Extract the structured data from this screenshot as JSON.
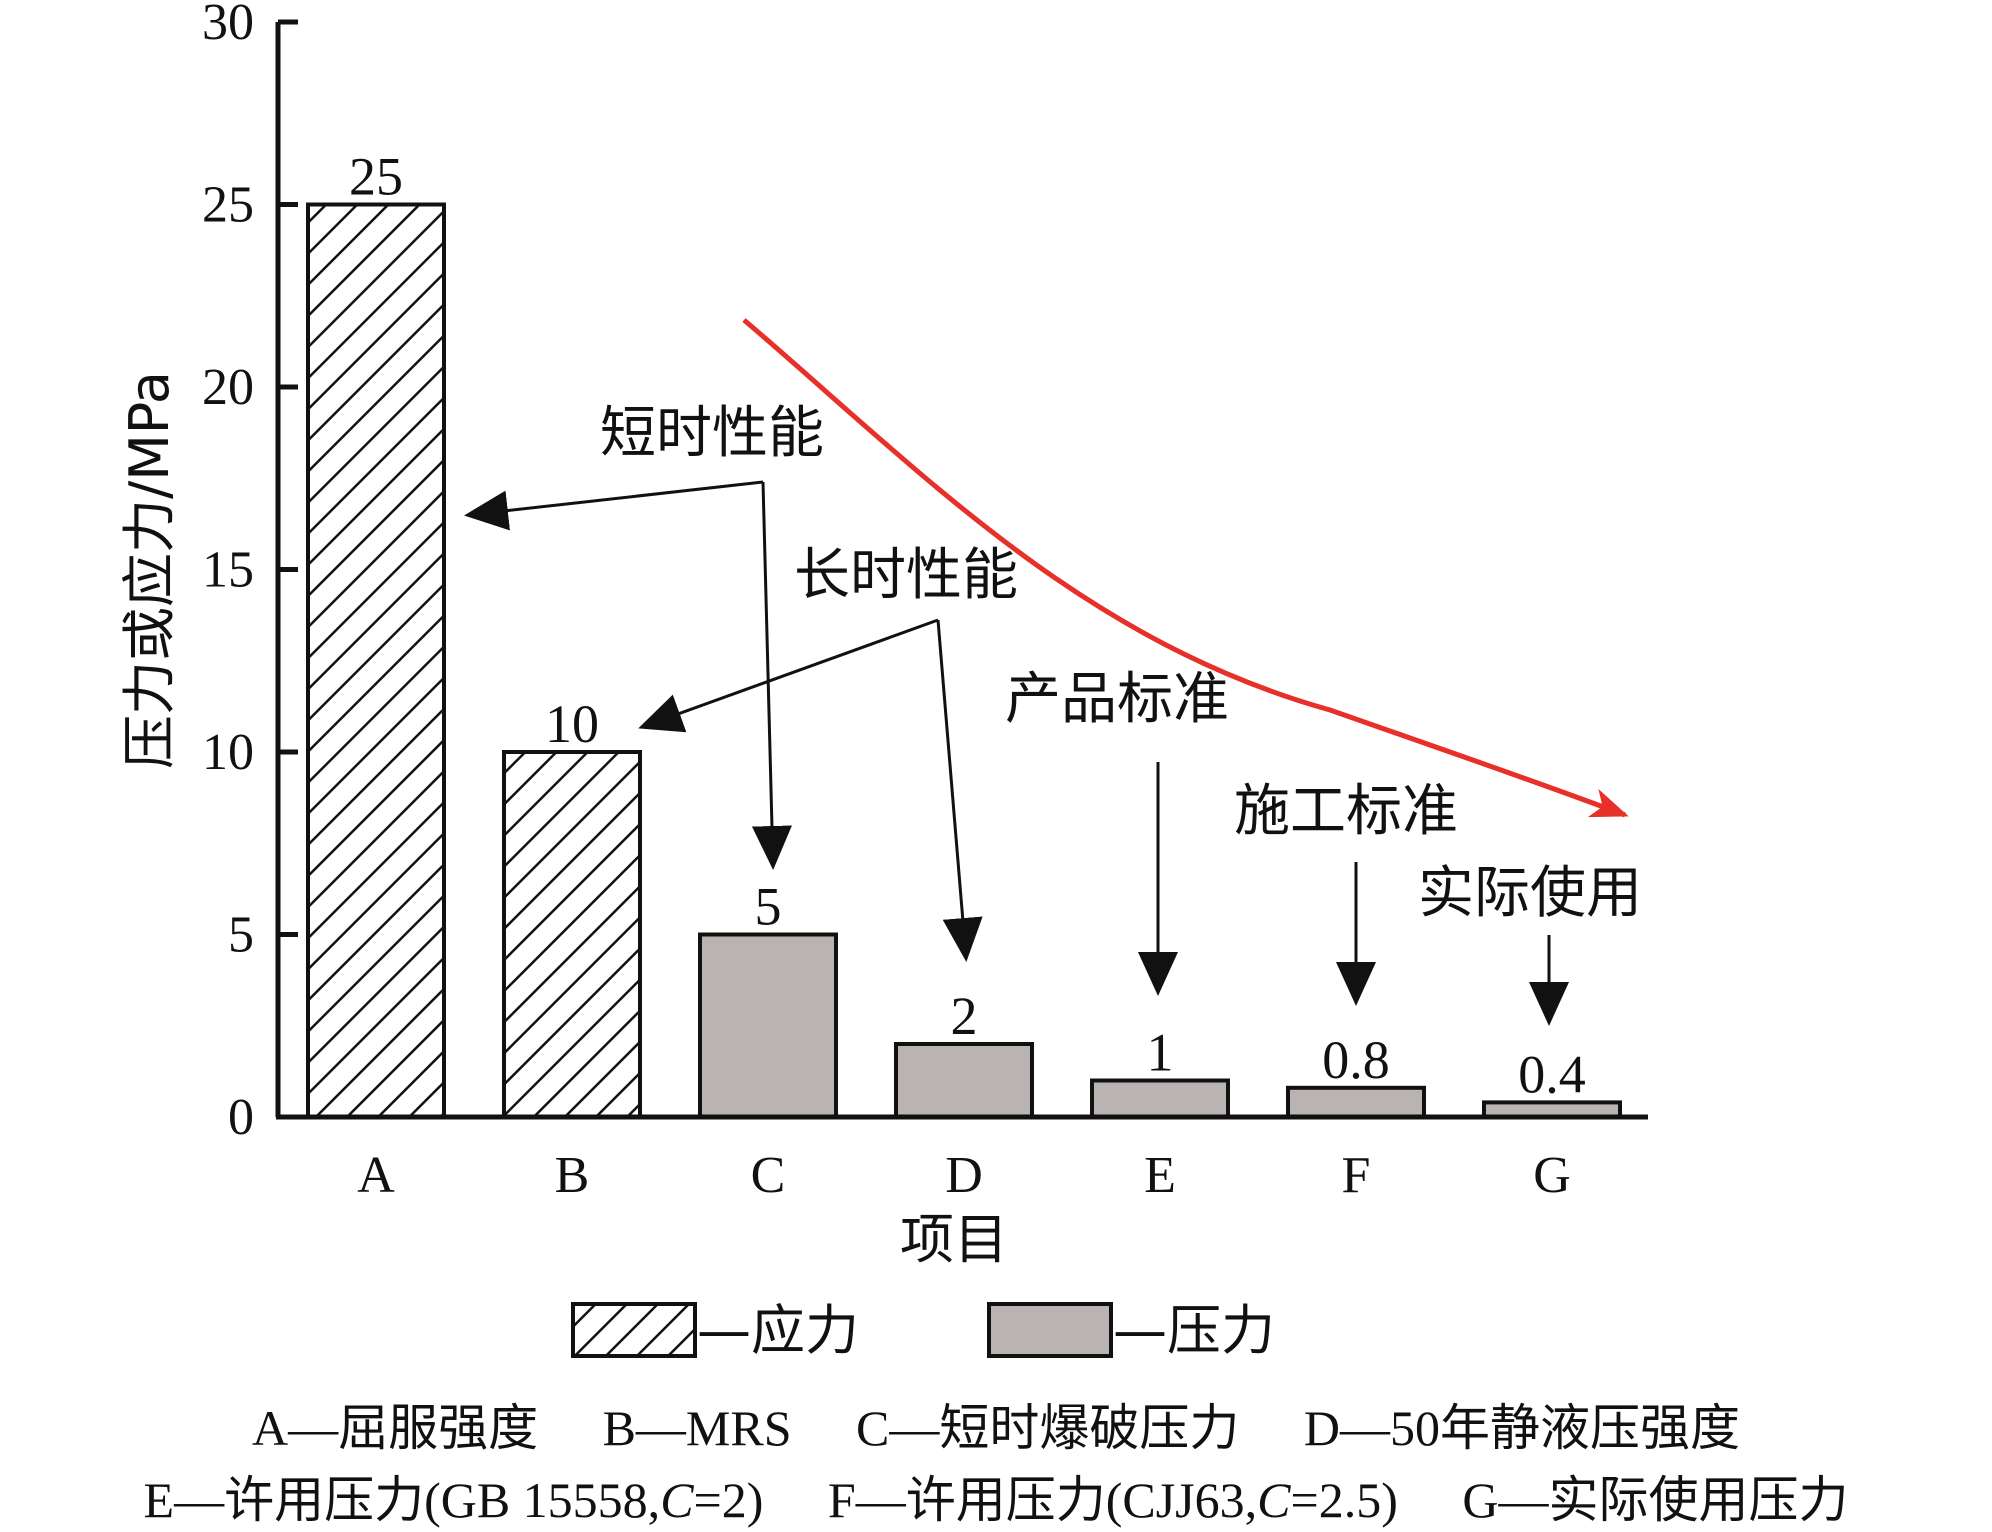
{
  "chart_data": {
    "type": "bar",
    "categories": [
      "A",
      "B",
      "C",
      "D",
      "E",
      "F",
      "G"
    ],
    "values": [
      25,
      10,
      5,
      2,
      1,
      0.8,
      0.4
    ],
    "value_labels": [
      "25",
      "10",
      "5",
      "2",
      "1",
      "0.8",
      "0.4"
    ],
    "bar_kind": [
      "stress",
      "stress",
      "pressure",
      "pressure",
      "pressure",
      "pressure",
      "pressure"
    ],
    "ylabel": "压力或应力/MPa",
    "xlabel": "项目",
    "ylim": [
      0,
      30
    ],
    "yticks": [
      0,
      5,
      10,
      15,
      20,
      25,
      30
    ],
    "grid": false,
    "legend": {
      "placement": "bottom",
      "items": [
        {
          "key": "stress",
          "label": "—应力",
          "fill": "hatched"
        },
        {
          "key": "pressure",
          "label": "—压力",
          "fill": "#b9b3b1"
        }
      ]
    },
    "annotations": [
      {
        "text": "短时性能",
        "points_to": [
          "A",
          "C"
        ]
      },
      {
        "text": "长时性能",
        "points_to": [
          "B",
          "D"
        ]
      },
      {
        "text": "产品标准",
        "points_to": [
          "E"
        ]
      },
      {
        "text": "施工标准",
        "points_to": [
          "F"
        ]
      },
      {
        "text": "实际使用",
        "points_to": [
          "G"
        ]
      }
    ],
    "trend_arrow": {
      "color": "#e8302a",
      "direction": "decreasing"
    }
  },
  "captions": {
    "line1": [
      "A—屈服强度",
      "B—MRS",
      "C—短时爆破压力",
      "D—50年静液压强度"
    ],
    "line2": {
      "E": {
        "pre": "E—许用压力(GB 15558,",
        "italic": "C",
        "post": "=2)"
      },
      "F": {
        "pre": "F—许用压力(CJJ63,",
        "italic": "C",
        "post": "=2.5)"
      },
      "G": {
        "pre": "G—实际使用压力",
        "italic": "",
        "post": ""
      }
    }
  },
  "colors": {
    "pressure_fill": "#b9b3b1",
    "axis": "#111111",
    "trend": "#e8302a"
  }
}
